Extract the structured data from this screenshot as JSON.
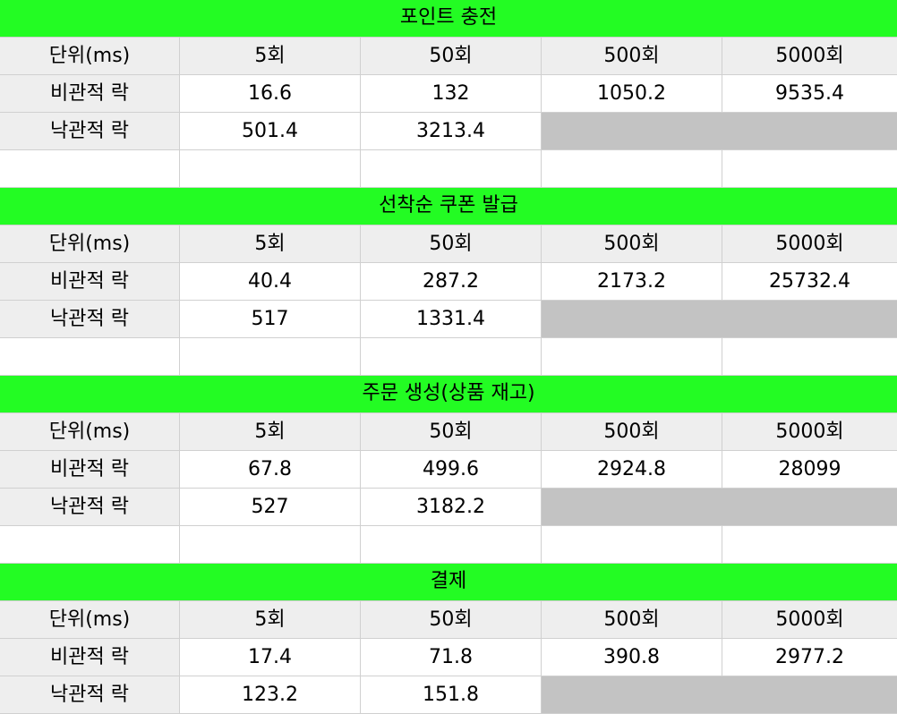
{
  "sections": [
    {
      "title": "포인트 충전",
      "headers": [
        "단위(ms)",
        "5회",
        "50회",
        "500회",
        "5000회"
      ],
      "pessimistic": {
        "label": "비관적 락",
        "values": [
          "16.6",
          "132",
          "1050.2",
          "9535.4"
        ]
      },
      "optimistic": {
        "label": "낙관적 락",
        "values": [
          "501.4",
          "3213.4"
        ]
      }
    },
    {
      "title": "선착순 쿠폰 발급",
      "headers": [
        "단위(ms)",
        "5회",
        "50회",
        "500회",
        "5000회"
      ],
      "pessimistic": {
        "label": "비관적 락",
        "values": [
          "40.4",
          "287.2",
          "2173.2",
          "25732.4"
        ]
      },
      "optimistic": {
        "label": "낙관적 락",
        "values": [
          "517",
          "1331.4"
        ]
      }
    },
    {
      "title": "주문 생성(상품 재고)",
      "headers": [
        "단위(ms)",
        "5회",
        "50회",
        "500회",
        "5000회"
      ],
      "pessimistic": {
        "label": "비관적 락",
        "values": [
          "67.8",
          "499.6",
          "2924.8",
          "28099"
        ]
      },
      "optimistic": {
        "label": "낙관적 락",
        "values": [
          "527",
          "3182.2"
        ]
      }
    },
    {
      "title": "결제",
      "headers": [
        "단위(ms)",
        "5회",
        "50회",
        "500회",
        "5000회"
      ],
      "pessimistic": {
        "label": "비관적 락",
        "values": [
          "17.4",
          "71.8",
          "390.8",
          "2977.2"
        ]
      },
      "optimistic": {
        "label": "낙관적 락",
        "values": [
          "123.2",
          "151.8"
        ]
      }
    }
  ],
  "colors": {
    "title_bg": "#23fc23",
    "header_bg": "#eeeeee",
    "empty_cell_bg": "#c3c3c3",
    "grid_line": "#d0d0d0"
  }
}
